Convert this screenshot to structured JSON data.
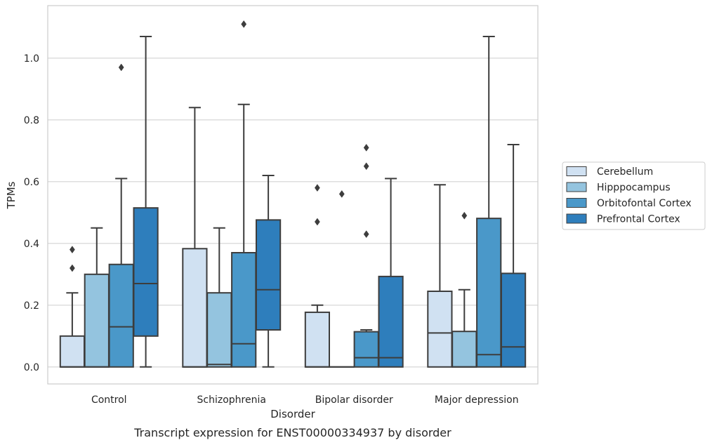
{
  "chart_data": {
    "type": "box",
    "title": "",
    "caption": "Transcript expression for ENST00000334937 by disorder",
    "xlabel": "Disorder",
    "ylabel": "TPMs",
    "ylim": [
      -0.055,
      1.17
    ],
    "yticks": [
      0.0,
      0.2,
      0.4,
      0.6,
      0.8,
      1.0
    ],
    "ytick_labels": [
      "0.0",
      "0.2",
      "0.4",
      "0.6",
      "0.8",
      "1.0"
    ],
    "grid": "horizontal",
    "legend_position": "right",
    "categories": [
      "Control",
      "Schizophrenia",
      "Bipolar disorder",
      "Major depression"
    ],
    "series": [
      {
        "name": "Cerebellum",
        "color": "#d0e1f2",
        "boxes": [
          {
            "whislo": 0.0,
            "q1": 0.0,
            "med": 0.0,
            "q3": 0.1,
            "whishi": 0.24,
            "fliers": [
              0.32,
              0.38
            ]
          },
          {
            "whislo": 0.0,
            "q1": 0.0,
            "med": 0.0,
            "q3": 0.383,
            "whishi": 0.84,
            "fliers": []
          },
          {
            "whislo": 0.0,
            "q1": 0.0,
            "med": 0.0,
            "q3": 0.177,
            "whishi": 0.2,
            "fliers": [
              0.47,
              0.58
            ]
          },
          {
            "whislo": 0.0,
            "q1": 0.0,
            "med": 0.11,
            "q3": 0.245,
            "whishi": 0.59,
            "fliers": []
          }
        ]
      },
      {
        "name": "Hipppocampus",
        "color": "#94c4df",
        "boxes": [
          {
            "whislo": 0.0,
            "q1": 0.0,
            "med": 0.0,
            "q3": 0.3,
            "whishi": 0.45,
            "fliers": []
          },
          {
            "whislo": 0.0,
            "q1": 0.0,
            "med": 0.008,
            "q3": 0.24,
            "whishi": 0.45,
            "fliers": []
          },
          {
            "whislo": 0.0,
            "q1": 0.0,
            "med": 0.0,
            "q3": 0.0,
            "whishi": 0.0,
            "fliers": [
              0.56
            ]
          },
          {
            "whislo": 0.0,
            "q1": 0.0,
            "med": 0.0,
            "q3": 0.115,
            "whishi": 0.25,
            "fliers": [
              0.49
            ]
          }
        ]
      },
      {
        "name": "Orbitofontal Cortex",
        "color": "#4a98c9",
        "boxes": [
          {
            "whislo": 0.0,
            "q1": 0.0,
            "med": 0.13,
            "q3": 0.332,
            "whishi": 0.61,
            "fliers": [
              0.97
            ]
          },
          {
            "whislo": 0.0,
            "q1": 0.0,
            "med": 0.075,
            "q3": 0.37,
            "whishi": 0.85,
            "fliers": [
              1.11
            ]
          },
          {
            "whislo": 0.0,
            "q1": 0.0,
            "med": 0.03,
            "q3": 0.114,
            "whishi": 0.12,
            "fliers": [
              0.43,
              0.65,
              0.71
            ]
          },
          {
            "whislo": 0.0,
            "q1": 0.0,
            "med": 0.04,
            "q3": 0.481,
            "whishi": 1.07,
            "fliers": []
          }
        ]
      },
      {
        "name": "Prefrontal Cortex",
        "color": "#2e7ebc",
        "boxes": [
          {
            "whislo": 0.0,
            "q1": 0.1,
            "med": 0.27,
            "q3": 0.515,
            "whishi": 1.07,
            "fliers": []
          },
          {
            "whislo": 0.0,
            "q1": 0.12,
            "med": 0.25,
            "q3": 0.476,
            "whishi": 0.62,
            "fliers": []
          },
          {
            "whislo": 0.0,
            "q1": 0.0,
            "med": 0.03,
            "q3": 0.293,
            "whishi": 0.61,
            "fliers": []
          },
          {
            "whislo": 0.0,
            "q1": 0.0,
            "med": 0.065,
            "q3": 0.303,
            "whishi": 0.72,
            "fliers": []
          }
        ]
      }
    ]
  },
  "colors": {
    "box_edge": "#3d3d3d",
    "grid": "#d3d3d3",
    "frame": "#cccccc",
    "text": "#262626"
  }
}
